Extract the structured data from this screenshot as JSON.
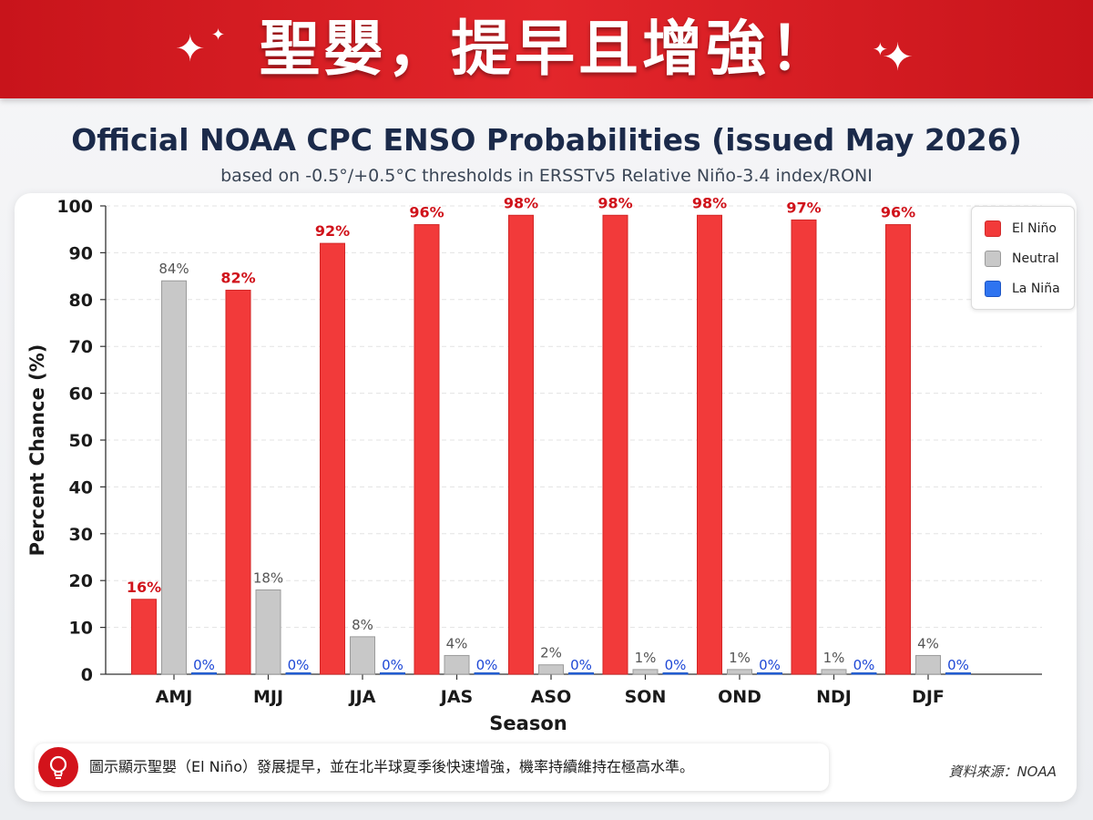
{
  "banner": {
    "title": "聖嬰，提早且增強！"
  },
  "header": {
    "title": "Official NOAA CPC ENSO Probabilities (issued May 2026)",
    "subtitle": "based on -0.5°/+0.5°C thresholds in ERSSTv5 Relative Niño-3.4 index/RONI"
  },
  "colors": {
    "el_nino": "#f23a3a",
    "neutral": "#c8c8c8",
    "la_nina": "#2f74f0",
    "el_nino_label": "#d0131b",
    "neutral_label": "#555555",
    "la_nina_label": "#1e48d6"
  },
  "chart_data": {
    "type": "bar",
    "title": "Official NOAA CPC ENSO Probabilities (issued May 2026)",
    "subtitle": "based on -0.5°/+0.5°C thresholds in ERSSTv5 Relative Niño-3.4 index/RONI",
    "xlabel": "Season",
    "ylabel": "Percent Chance (%)",
    "ylim": [
      0,
      100
    ],
    "yticks": [
      0,
      10,
      20,
      30,
      40,
      50,
      60,
      70,
      80,
      90,
      100
    ],
    "grid": true,
    "legend_position": "top-right",
    "categories": [
      "AMJ",
      "MJJ",
      "JJA",
      "JAS",
      "ASO",
      "SON",
      "OND",
      "NDJ",
      "DJF"
    ],
    "series": [
      {
        "name": "El Niño",
        "values": [
          16,
          82,
          92,
          96,
          98,
          98,
          98,
          97,
          96
        ],
        "labels": [
          "16%",
          "82%",
          "92%",
          "96%",
          "98%",
          "98%",
          "98%",
          "97%",
          "96%"
        ]
      },
      {
        "name": "Neutral",
        "values": [
          84,
          18,
          8,
          4,
          2,
          1,
          1,
          1,
          4
        ],
        "labels": [
          "84%",
          "18%",
          "8%",
          "4%",
          "2%",
          "1%",
          "1%",
          "1%",
          "4%"
        ]
      },
      {
        "name": "La Niña",
        "values": [
          0,
          0,
          0,
          0,
          0,
          0,
          0,
          0,
          0
        ],
        "labels": [
          "0%",
          "0%",
          "0%",
          "0%",
          "0%",
          "0%",
          "0%",
          "0%",
          "0%"
        ]
      }
    ]
  },
  "note": {
    "icon": "lightbulb-icon",
    "text": "圖示顯示聖嬰（El Niño）發展提早，並在北半球夏季後快速增強，機率持續維持在極高水準。"
  },
  "source": {
    "text": "資料來源：NOAA"
  }
}
